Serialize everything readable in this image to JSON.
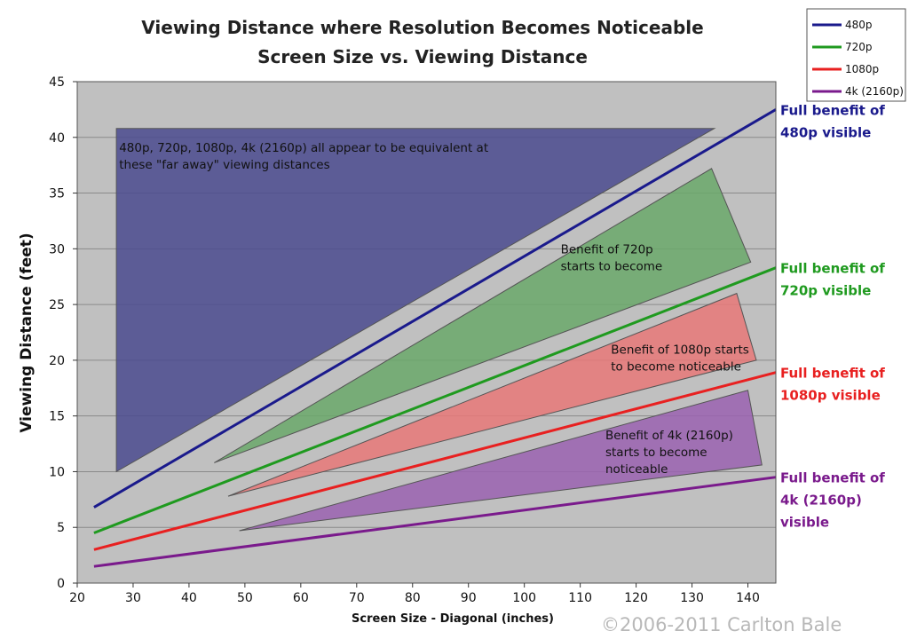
{
  "chart_data": {
    "type": "line",
    "title": "Viewing Distance where Resolution Becomes Noticeable",
    "subtitle": "Screen Size vs. Viewing Distance",
    "xlabel": "Screen Size - Diagonal (inches)",
    "ylabel": "Viewing Distance (feet)",
    "xlim": [
      20,
      145
    ],
    "ylim": [
      0,
      45
    ],
    "x_ticks": [
      20,
      30,
      40,
      50,
      60,
      70,
      80,
      90,
      100,
      110,
      120,
      130,
      140
    ],
    "y_ticks": [
      0,
      5,
      10,
      15,
      20,
      25,
      30,
      35,
      40,
      45
    ],
    "grid": "horizontal",
    "legend_position": "top-right",
    "series": [
      {
        "name": "480p",
        "color": "#1a1a8c",
        "x": [
          23,
          145
        ],
        "y": [
          6.8,
          42.5
        ],
        "label_lines": [
          "Full benefit of",
          "480p visible"
        ]
      },
      {
        "name": "720p",
        "color": "#1f9a1f",
        "x": [
          23,
          145
        ],
        "y": [
          4.5,
          28.3
        ],
        "label_lines": [
          "Full benefit of",
          "720p visible"
        ]
      },
      {
        "name": "1080p",
        "color": "#e82020",
        "x": [
          23,
          145
        ],
        "y": [
          3.0,
          18.9
        ],
        "label_lines": [
          "Full benefit of",
          "1080p visible"
        ]
      },
      {
        "name": "4k (2160p)",
        "color": "#7a1a8c",
        "x": [
          23,
          145
        ],
        "y": [
          1.5,
          9.5
        ],
        "label_lines": [
          "Full benefit of",
          "4k (2160p)",
          "visible"
        ]
      }
    ],
    "regions": [
      {
        "color": "#4a4a8e",
        "points": [
          [
            27,
            10
          ],
          [
            27,
            40.8
          ],
          [
            134,
            40.8
          ]
        ],
        "label_lines": [
          "480p, 720p, 1080p, 4k (2160p) all appear to be equivalent at",
          "these \"far away\" viewing distances"
        ],
        "label_at": [
          27.5,
          38.7
        ]
      },
      {
        "color": "#6aa86a",
        "points": [
          [
            44.5,
            10.8
          ],
          [
            133.5,
            37.2
          ],
          [
            140.5,
            28.8
          ]
        ],
        "label_lines": [
          "Benefit of 720p",
          "starts to become"
        ],
        "label_at": [
          106.5,
          29.6
        ]
      },
      {
        "color": "#e87878",
        "points": [
          [
            47,
            7.8
          ],
          [
            138,
            26
          ],
          [
            141.5,
            20
          ]
        ],
        "label_lines": [
          "Benefit of 1080p starts",
          "to become noticeable"
        ],
        "label_at": [
          115.5,
          20.6
        ]
      },
      {
        "color": "#9a62b0",
        "points": [
          [
            49,
            4.7
          ],
          [
            140,
            17.3
          ],
          [
            142.5,
            10.6
          ]
        ],
        "label_lines": [
          "Benefit of 4k (2160p)",
          "starts to become",
          "noticeable"
        ],
        "label_at": [
          114.5,
          12.9
        ]
      }
    ]
  },
  "copyright": "©2006-2011 Carlton Bale"
}
